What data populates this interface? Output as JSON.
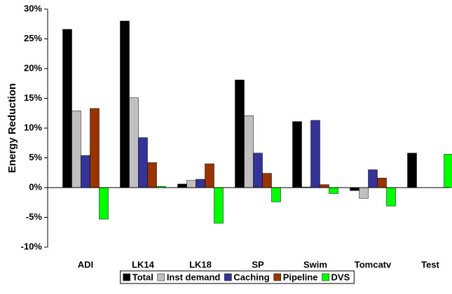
{
  "chart_data": {
    "type": "bar",
    "y_label": "Energy Reduction",
    "categories": [
      "ADI",
      "LK14",
      "LK18",
      "SP",
      "Swim",
      "Tomcatv",
      "Test"
    ],
    "series": [
      {
        "name": "Total",
        "color": "#000000",
        "values": [
          26.6,
          28.0,
          0.6,
          18.1,
          11.1,
          -0.5,
          5.8
        ]
      },
      {
        "name": "Inst demand",
        "color": "#c0c0c0",
        "values": [
          12.9,
          15.1,
          1.2,
          12.1,
          0.1,
          -1.8,
          0
        ]
      },
      {
        "name": "Caching",
        "color": "#333399",
        "values": [
          5.4,
          8.4,
          1.4,
          5.8,
          11.3,
          3.0,
          0
        ]
      },
      {
        "name": "Pipeline",
        "color": "#993300",
        "values": [
          13.3,
          4.2,
          4.0,
          2.4,
          0.5,
          1.6,
          0
        ]
      },
      {
        "name": "DVS",
        "color": "#00ff00",
        "values": [
          -5.3,
          0.2,
          -6.0,
          -2.4,
          -1.0,
          -3.1,
          5.6
        ]
      }
    ],
    "ylim": [
      -10,
      30
    ],
    "yticks": [
      {
        "value": -10,
        "label": "-10%"
      },
      {
        "value": -5,
        "label": "-5%"
      },
      {
        "value": 0,
        "label": "0%"
      },
      {
        "value": 5,
        "label": "5%"
      },
      {
        "value": 10,
        "label": "10%"
      },
      {
        "value": 15,
        "label": "15%"
      },
      {
        "value": 20,
        "label": "20%"
      },
      {
        "value": 25,
        "label": "25%"
      },
      {
        "value": 30,
        "label": "30%"
      }
    ],
    "grid": false
  }
}
